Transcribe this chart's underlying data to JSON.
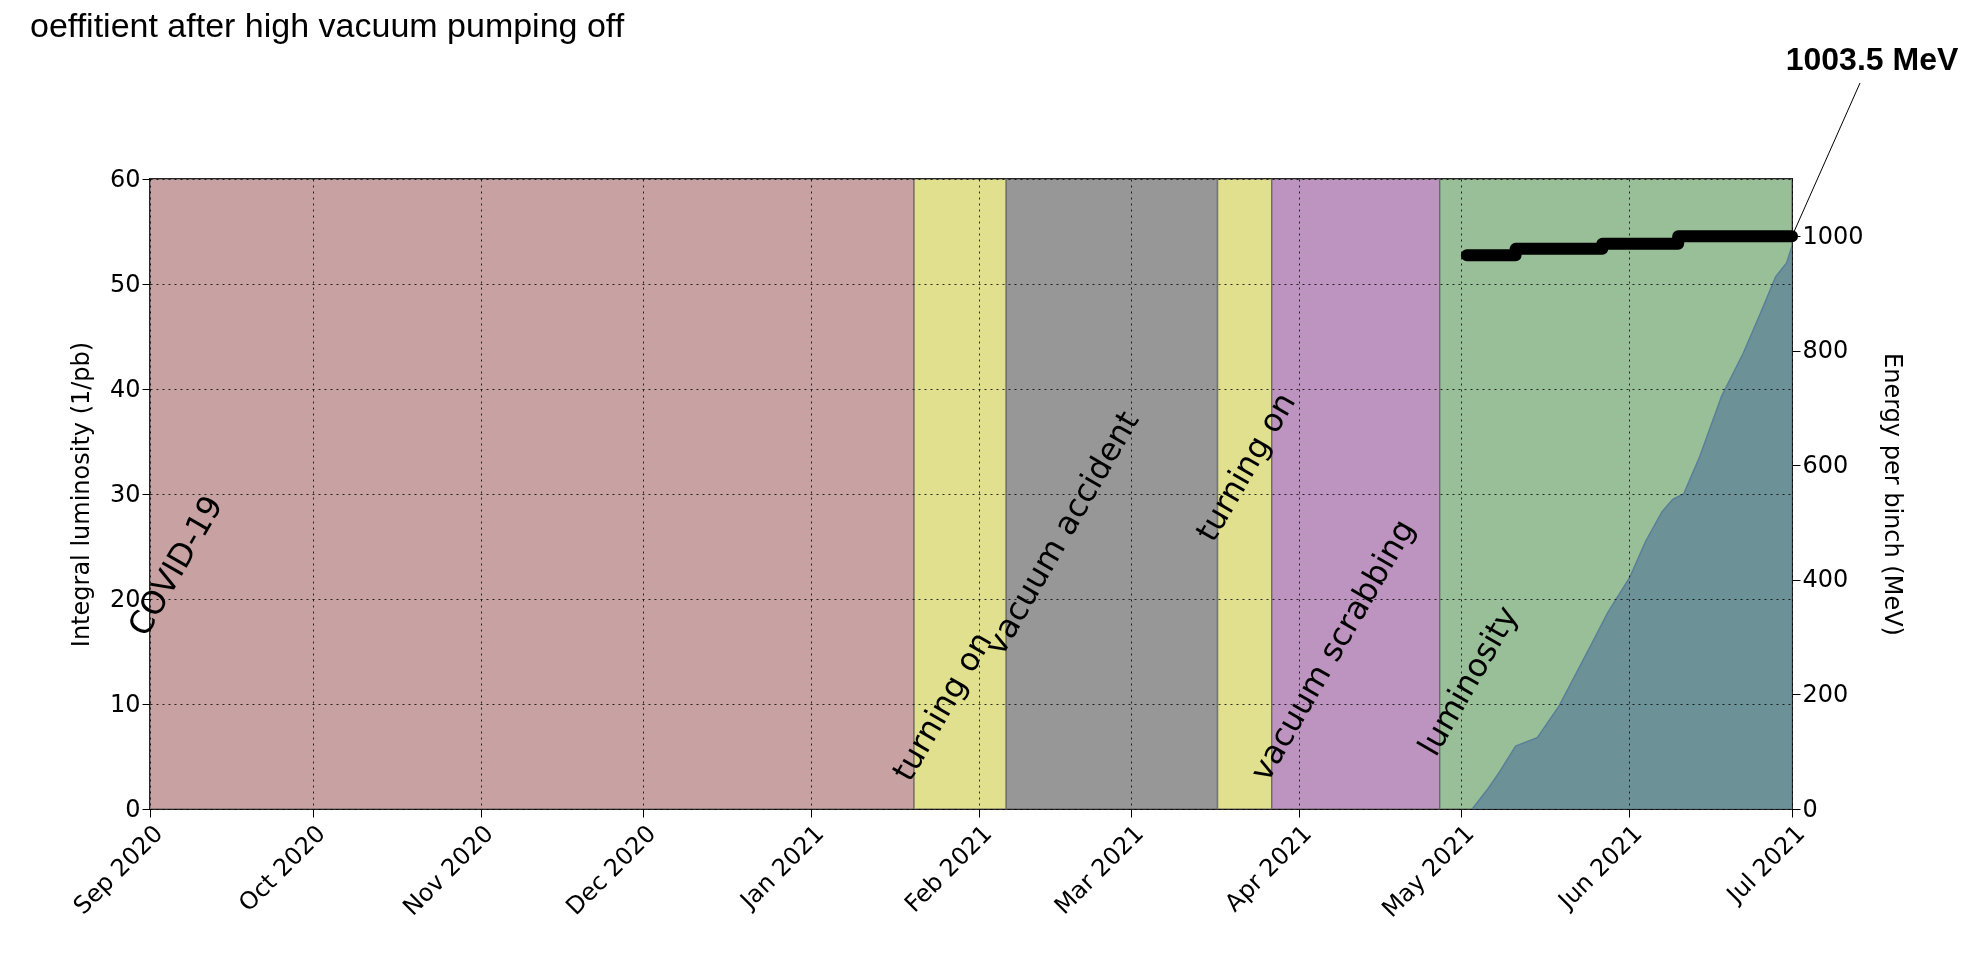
{
  "chart_data": {
    "type": "area",
    "title": "oeffitient after high vacuum pumping off",
    "ylabel": "Integral luminosity (1/pb)",
    "y2label": "Energy per binch (MeV)",
    "xlim": [
      "2020-09-01",
      "2021-07-01"
    ],
    "xticks": [
      {
        "value": "2020-09-01",
        "label": "Sep 2020"
      },
      {
        "value": "2020-10-01",
        "label": "Oct 2020"
      },
      {
        "value": "2020-11-01",
        "label": "Nov 2020"
      },
      {
        "value": "2020-12-01",
        "label": "Dec 2020"
      },
      {
        "value": "2021-01-01",
        "label": "Jan 2021"
      },
      {
        "value": "2021-02-01",
        "label": "Feb 2021"
      },
      {
        "value": "2021-03-01",
        "label": "Mar 2021"
      },
      {
        "value": "2021-04-01",
        "label": "Apr 2021"
      },
      {
        "value": "2021-05-01",
        "label": "May 2021"
      },
      {
        "value": "2021-06-01",
        "label": "Jun 2021"
      },
      {
        "value": "2021-07-01",
        "label": "Jul 2021"
      }
    ],
    "ylim": [
      0,
      60
    ],
    "yticks": [
      0,
      10,
      20,
      30,
      40,
      50,
      60
    ],
    "y2lim": [
      0,
      1100
    ],
    "y2ticks": [
      0,
      200,
      400,
      600,
      800,
      1000
    ],
    "grid": true,
    "bands": [
      {
        "axis": "x",
        "from": "2020-09-01",
        "to": "2021-01-20",
        "label": "COVID-19",
        "color": "#c8a2a2"
      },
      {
        "axis": "x",
        "from": "2021-01-20",
        "to": "2021-02-06",
        "label": "turning on",
        "color": "#e1e08f"
      },
      {
        "axis": "x",
        "from": "2021-02-06",
        "to": "2021-03-17",
        "label": "vacuum accident",
        "color": "#979797"
      },
      {
        "axis": "x",
        "from": "2021-03-17",
        "to": "2021-03-27",
        "label": "turning on",
        "color": "#e1e08f"
      },
      {
        "axis": "x",
        "from": "2021-03-27",
        "to": "2021-04-27",
        "label": "vacuum scrabbing",
        "color": "#bd94bf"
      },
      {
        "axis": "x",
        "from": "2021-04-27",
        "to": "2021-07-01",
        "label": "luminosity",
        "color": "#98bf97"
      }
    ],
    "series": [
      {
        "type": "area",
        "color": "#5a7f99",
        "x": [
          "2021-05-03",
          "2021-05-06",
          "2021-05-08",
          "2021-05-11",
          "2021-05-15",
          "2021-05-19",
          "2021-05-25",
          "2021-05-28",
          "2021-06-01",
          "2021-06-04",
          "2021-06-07",
          "2021-06-09",
          "2021-06-11",
          "2021-06-14",
          "2021-06-18",
          "2021-06-22",
          "2021-06-25",
          "2021-06-28",
          "2021-06-30",
          "2021-07-01"
        ],
        "values": [
          0,
          2,
          3.5,
          6,
          6.8,
          9.8,
          15.7,
          18.7,
          22,
          25.5,
          28.3,
          29.5,
          30,
          33.6,
          39.3,
          43.4,
          47,
          50.7,
          52,
          53.6
        ]
      },
      {
        "type": "step",
        "axis": "y2",
        "color": "#000000",
        "x": [
          "2021-05-02",
          "2021-05-11",
          "2021-05-27",
          "2021-06-10",
          "2021-07-01"
        ],
        "values": [
          967,
          978,
          987,
          1000,
          1000
        ]
      }
    ],
    "annotations": [
      "1003.5 MeV"
    ]
  }
}
